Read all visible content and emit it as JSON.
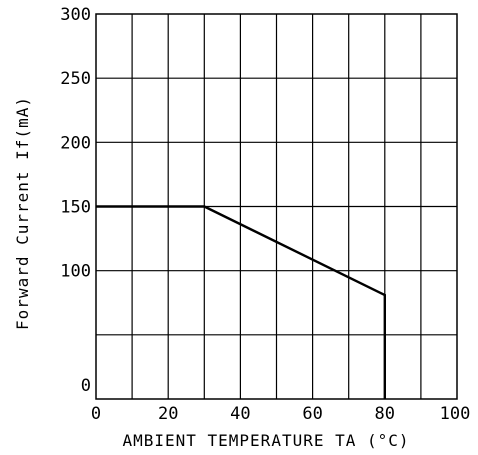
{
  "chart_data": {
    "type": "line",
    "title": "",
    "xlabel": "AMBIENT TEMPERATURE TA (°C)",
    "ylabel": "Forward Current If(mA)",
    "xlim": [
      0,
      100
    ],
    "ylim": [
      0,
      300
    ],
    "x_ticks": [
      "0",
      "20",
      "40",
      "60",
      "80",
      "100"
    ],
    "y_ticks": [
      "0",
      "100",
      "150",
      "200",
      "250",
      "300"
    ],
    "grid": true,
    "x_grid_step": 10,
    "y_grid_lines": [
      0,
      50,
      100,
      150,
      200,
      250,
      300
    ],
    "series": [
      {
        "points": [
          {
            "x": 0,
            "y": 150
          },
          {
            "x": 30,
            "y": 150
          },
          {
            "x": 80,
            "y": 81
          },
          {
            "x": 80,
            "y": 0
          }
        ],
        "color": "#000000"
      }
    ]
  }
}
